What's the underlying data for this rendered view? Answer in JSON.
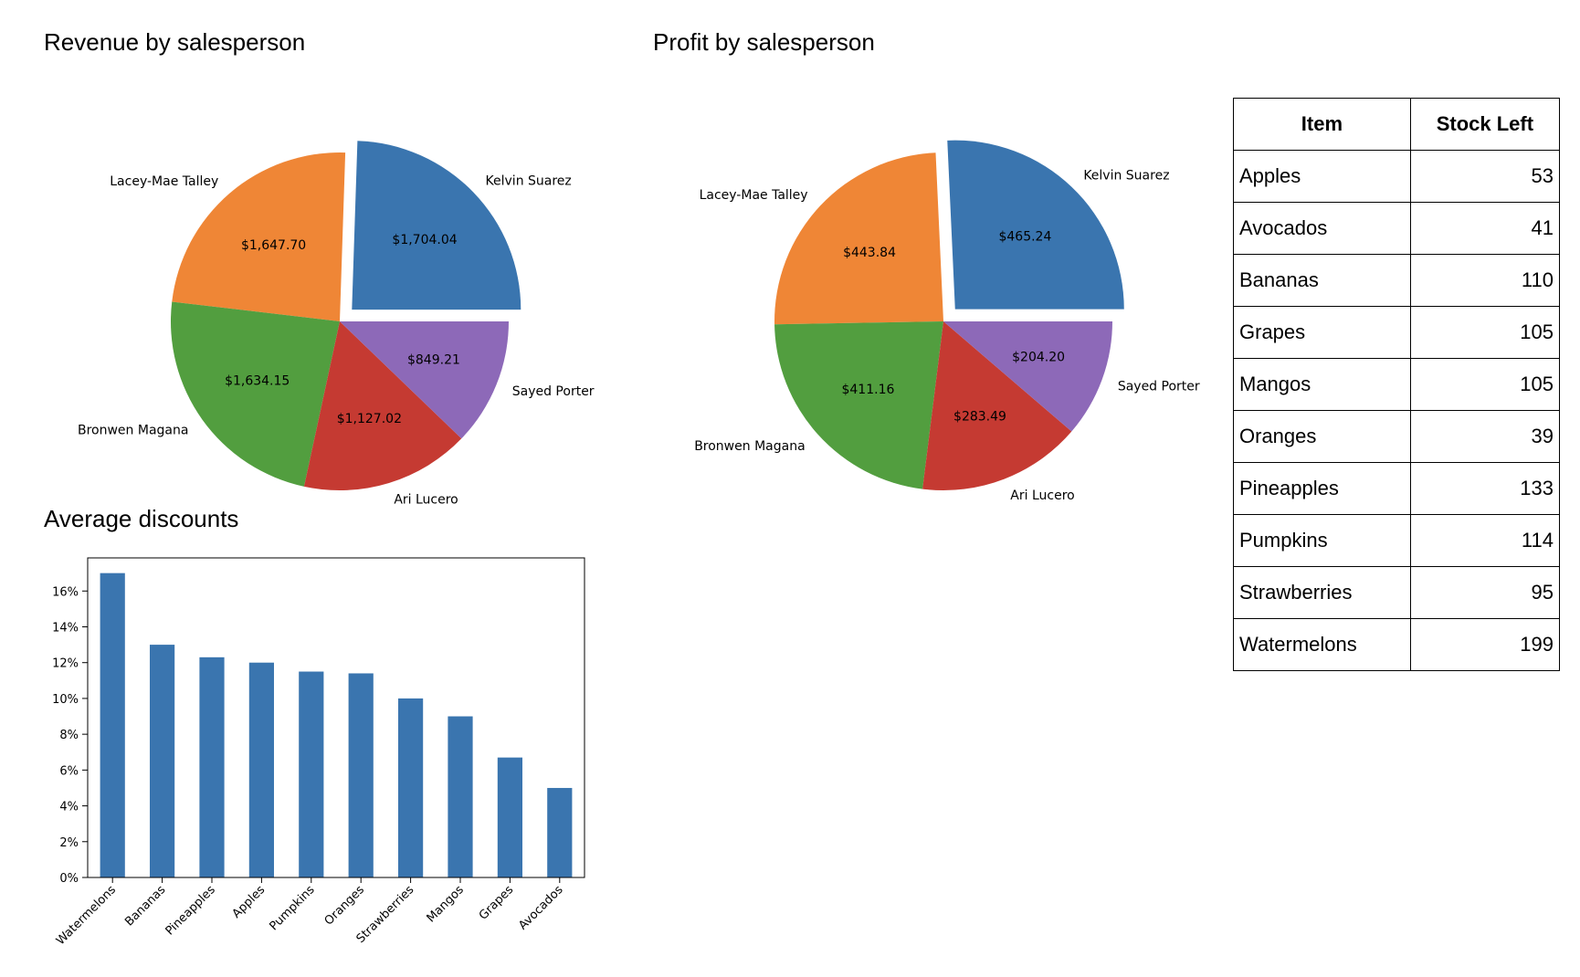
{
  "titles": {
    "revenue": "Revenue by salesperson",
    "profit": "Profit by salesperson",
    "discounts": "Average discounts"
  },
  "colors": {
    "slices": [
      "#3a75af",
      "#ef8636",
      "#529e3f",
      "#c53a32",
      "#8d69b8"
    ],
    "bars": "#3a75af"
  },
  "chart_data": [
    {
      "type": "pie",
      "title": "Revenue by salesperson",
      "labels": [
        "Kelvin Suarez",
        "Lacey-Mae Talley",
        "Bronwen Magana",
        "Ari Lucero",
        "Sayed Porter"
      ],
      "values": [
        1704.04,
        1647.7,
        1634.15,
        1127.02,
        849.21
      ],
      "value_labels": [
        "$1,704.04",
        "$1,647.70",
        "$1,634.15",
        "$1,127.02",
        "$849.21"
      ],
      "exploded": "Kelvin Suarez"
    },
    {
      "type": "pie",
      "title": "Profit by salesperson",
      "labels": [
        "Kelvin Suarez",
        "Lacey-Mae Talley",
        "Bronwen Magana",
        "Ari Lucero",
        "Sayed Porter"
      ],
      "values": [
        465.24,
        443.84,
        411.16,
        283.49,
        204.2
      ],
      "value_labels": [
        "$465.24",
        "$443.84",
        "$411.16",
        "$283.49",
        "$204.20"
      ],
      "exploded": "Kelvin Suarez"
    },
    {
      "type": "bar",
      "title": "Average discounts",
      "categories": [
        "Watermelons",
        "Bananas",
        "Pineapples",
        "Apples",
        "Pumpkins",
        "Oranges",
        "Strawberries",
        "Mangos",
        "Grapes",
        "Avocados"
      ],
      "values": [
        17.0,
        13.0,
        12.3,
        12.0,
        11.5,
        11.4,
        10.0,
        9.0,
        6.7,
        5.0
      ],
      "yticks": [
        "0%",
        "2%",
        "4%",
        "6%",
        "8%",
        "10%",
        "12%",
        "14%",
        "16%"
      ],
      "ylim": [
        0,
        17.85
      ],
      "grid": false
    },
    {
      "type": "table",
      "columns": [
        "Item",
        "Stock Left"
      ],
      "rows": [
        [
          "Apples",
          "53"
        ],
        [
          "Avocados",
          "41"
        ],
        [
          "Bananas",
          "110"
        ],
        [
          "Grapes",
          "105"
        ],
        [
          "Mangos",
          "105"
        ],
        [
          "Oranges",
          "39"
        ],
        [
          "Pineapples",
          "133"
        ],
        [
          "Pumpkins",
          "114"
        ],
        [
          "Strawberries",
          "95"
        ],
        [
          "Watermelons",
          "199"
        ]
      ]
    }
  ]
}
